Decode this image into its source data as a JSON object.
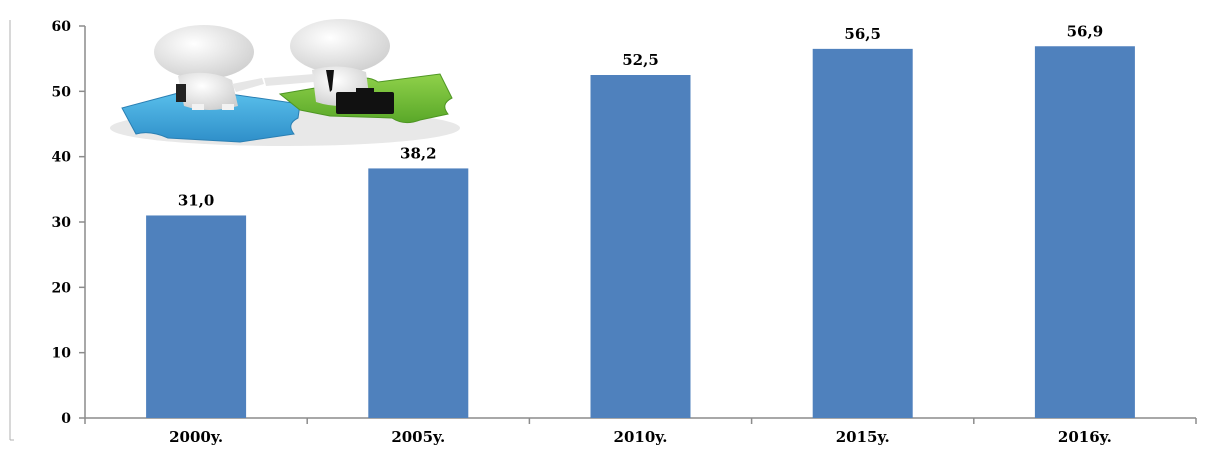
{
  "chart_data": {
    "type": "bar",
    "categories": [
      "2000y.",
      "2005y.",
      "2010y.",
      "2015y.",
      "2016y."
    ],
    "values": [
      31.0,
      38.2,
      52.5,
      56.5,
      56.9
    ],
    "data_labels": [
      "31,0",
      "38,2",
      "52,5",
      "56,5",
      "56,9"
    ],
    "ylim": [
      0,
      60
    ],
    "yticks": [
      0,
      10,
      20,
      30,
      40,
      50,
      60
    ],
    "title": "",
    "xlabel": "",
    "ylabel": "",
    "grid": false,
    "legend": "none",
    "bar_color": "#4f81bd",
    "axis_color": "#8c8c8c",
    "decoration": "handshake-puzzle-illustration"
  }
}
